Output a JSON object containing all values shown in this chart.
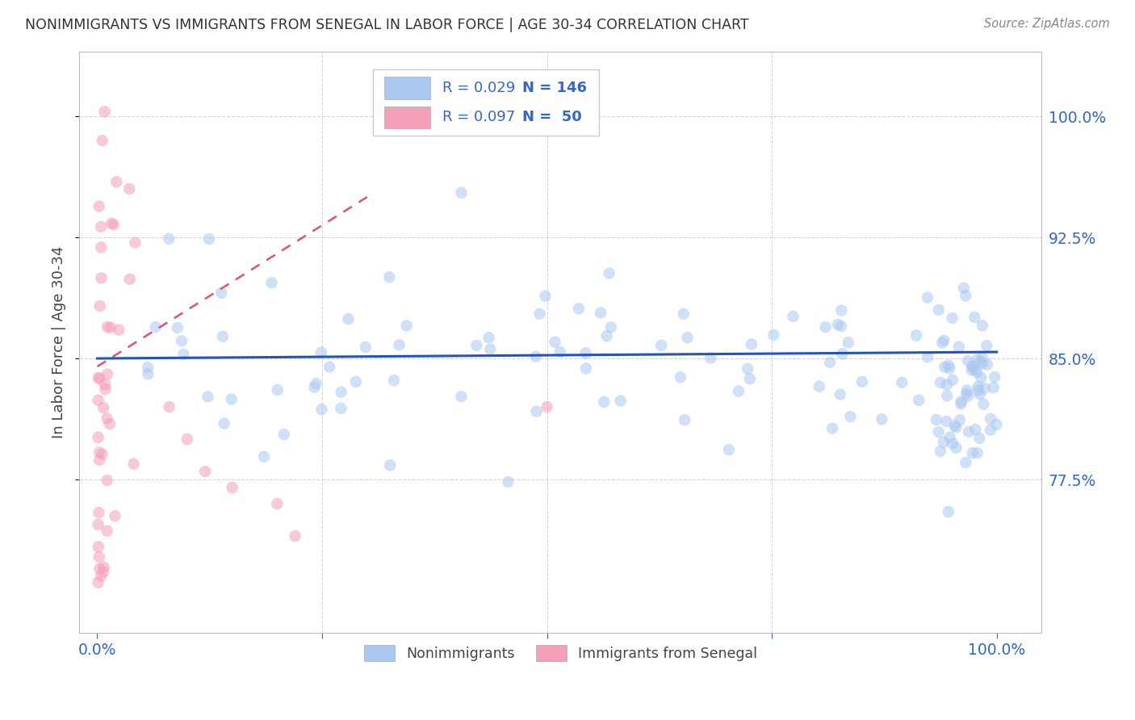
{
  "title": "NONIMMIGRANTS VS IMMIGRANTS FROM SENEGAL IN LABOR FORCE | AGE 30-34 CORRELATION CHART",
  "source": "Source: ZipAtlas.com",
  "ylabel": "In Labor Force | Age 30-34",
  "xlim": [
    -0.02,
    1.05
  ],
  "ylim": [
    0.68,
    1.04
  ],
  "yticks": [
    0.775,
    0.85,
    0.925,
    1.0
  ],
  "ytick_labels": [
    "77.5%",
    "85.0%",
    "92.5%",
    "100.0%"
  ],
  "xtick_labels": [
    "0.0%",
    "100.0%"
  ],
  "xtick_positions": [
    0.0,
    1.0
  ],
  "nonimmigrant_R": 0.029,
  "nonimmigrant_N": 146,
  "immigrant_R": 0.097,
  "immigrant_N": 50,
  "nonimmigrant_color": "#aac8f0",
  "immigrant_color": "#f4a0b8",
  "line_color_nonimmigrant": "#2255bb",
  "line_color_immigrant": "#e05070",
  "bg_color": "#ffffff",
  "grid_color": "#cccccc",
  "title_color": "#333333",
  "axis_label_color": "#444444",
  "tick_color_right": "#3366cc",
  "scatter_alpha": 0.55,
  "marker_size": 110
}
